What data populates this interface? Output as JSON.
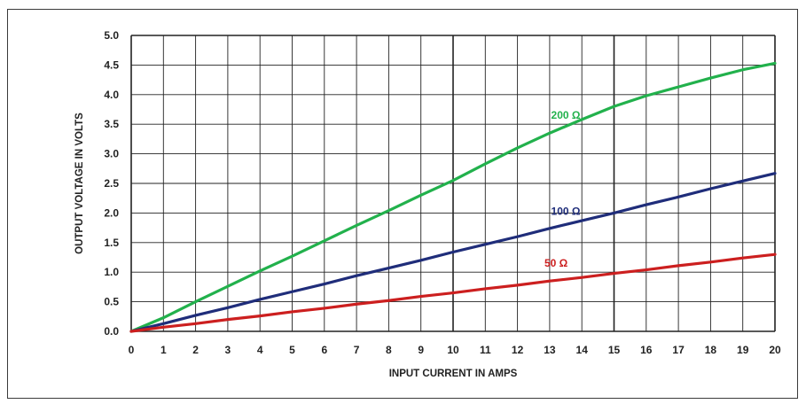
{
  "chart_data": {
    "type": "line",
    "title": "",
    "xlabel": "INPUT CURRENT IN AMPS",
    "ylabel": "OUTPUT VOLTAGE IN VOLTS",
    "xlim": [
      0,
      20
    ],
    "ylim": [
      0,
      5.0
    ],
    "x_ticks": [
      "0",
      "1",
      "2",
      "3",
      "4",
      "5",
      "6",
      "7",
      "8",
      "9",
      "10",
      "11",
      "12",
      "13",
      "14",
      "15",
      "16",
      "17",
      "18",
      "19",
      "20"
    ],
    "y_ticks": [
      "0.0",
      "0.5",
      "1.0",
      "1.5",
      "2.0",
      "2.5",
      "3.0",
      "3.5",
      "4.0",
      "4.5",
      "5.0"
    ],
    "grid": true,
    "legend": "inline labels on curves",
    "x": [
      0,
      1,
      2,
      3,
      4,
      5,
      6,
      7,
      8,
      9,
      10,
      11,
      12,
      13,
      14,
      15,
      16,
      17,
      18,
      19,
      20
    ],
    "series": [
      {
        "name": "200 Ω",
        "color": "#22b14c",
        "label_x": 13.5,
        "label_y": 3.65,
        "values": [
          0.0,
          0.23,
          0.5,
          0.76,
          1.02,
          1.27,
          1.53,
          1.79,
          2.04,
          2.3,
          2.55,
          2.83,
          3.1,
          3.35,
          3.58,
          3.8,
          3.98,
          4.13,
          4.28,
          4.42,
          4.53
        ]
      },
      {
        "name": "100 Ω",
        "color": "#1f2d7a",
        "label_x": 13.5,
        "label_y": 2.03,
        "values": [
          0.0,
          0.13,
          0.27,
          0.4,
          0.54,
          0.67,
          0.8,
          0.94,
          1.07,
          1.2,
          1.34,
          1.47,
          1.6,
          1.74,
          1.87,
          2.0,
          2.14,
          2.27,
          2.41,
          2.54,
          2.67
        ]
      },
      {
        "name": "50 Ω",
        "color": "#cc1f1f",
        "label_x": 13.2,
        "label_y": 1.15,
        "values": [
          0.0,
          0.07,
          0.13,
          0.2,
          0.26,
          0.33,
          0.39,
          0.46,
          0.52,
          0.59,
          0.65,
          0.72,
          0.78,
          0.85,
          0.91,
          0.98,
          1.04,
          1.11,
          1.17,
          1.24,
          1.3
        ]
      }
    ]
  }
}
